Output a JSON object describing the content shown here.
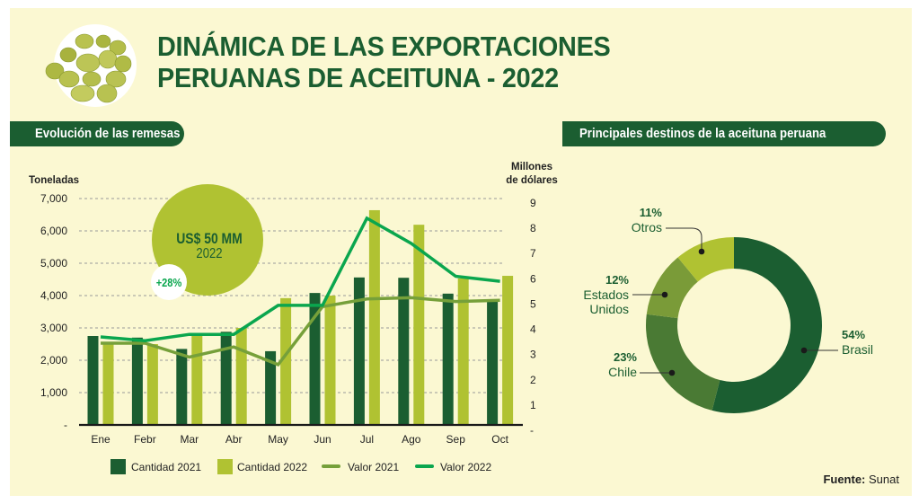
{
  "header": {
    "title_line1": "DINÁMICA DE LAS EXPORTACIONES",
    "title_line2": "PERUANAS DE ACEITUNA - 2022",
    "image": "olives-image"
  },
  "sections": {
    "left_title": "Evolución de las remesas",
    "right_title": "Principales destinos de la aceituna peruana"
  },
  "colors": {
    "dark_green": "#1b5e31",
    "light_green": "#b0c232",
    "valor_2021": "#76a03a",
    "valor_2022": "#0aa64e",
    "background": "#fbf8d2",
    "text_dark": "#222222",
    "grid": "#9a9a9a"
  },
  "callout": {
    "amount": "US$ 50 MM",
    "year": "2022",
    "growth": "+28%"
  },
  "chart_data": [
    {
      "type": "bar",
      "title": "Evolución de las remesas",
      "categories": [
        "Ene",
        "Febr",
        "Mar",
        "Abr",
        "May",
        "Jun",
        "Jul",
        "Ago",
        "Sep",
        "Oct"
      ],
      "ylabel": "Toneladas",
      "ylabel_right": [
        "Millones",
        "de dólares"
      ],
      "ylim": [
        0,
        7000
      ],
      "ylim_right": [
        0,
        9
      ],
      "y_ticks": [
        "-",
        "1,000",
        "2,000",
        "3,000",
        "4,000",
        "5,000",
        "6,000",
        "7,000"
      ],
      "y_ticks_right": [
        "-",
        "1",
        "2",
        "3",
        "4",
        "5",
        "6",
        "7",
        "8",
        "9"
      ],
      "grid": true,
      "legend_position": "bottom",
      "series": [
        {
          "name": "Cantidad 2021",
          "kind": "bar",
          "axis": "left",
          "values": [
            2750,
            2700,
            2350,
            2880,
            2280,
            4080,
            4560,
            4550,
            4060,
            3830
          ]
        },
        {
          "name": "Cantidad 2022",
          "kind": "bar",
          "axis": "left",
          "values": [
            2530,
            2500,
            2830,
            3000,
            3920,
            4000,
            6640,
            6190,
            4530,
            4610
          ]
        },
        {
          "name": "Valor 2021",
          "kind": "line",
          "axis": "right",
          "values": [
            3.45,
            3.45,
            2.9,
            3.3,
            2.6,
            4.9,
            5.2,
            5.25,
            5.1,
            5.15
          ]
        },
        {
          "name": "Valor 2022",
          "kind": "line",
          "axis": "right",
          "values": [
            3.7,
            3.55,
            3.8,
            3.8,
            4.95,
            4.95,
            8.4,
            7.4,
            6.1,
            5.9
          ]
        }
      ]
    },
    {
      "type": "pie",
      "donut": true,
      "title": "Principales destinos de la aceituna peruana",
      "slices": [
        {
          "label": "Brasil",
          "pct_label": "54%",
          "value": 54,
          "color": "#1b5e31"
        },
        {
          "label": "Chile",
          "pct_label": "23%",
          "value": 23,
          "color": "#4a7a34"
        },
        {
          "label": "Estados Unidos",
          "label_lines": [
            "Estados",
            "Unidos"
          ],
          "pct_label": "12%",
          "value": 12,
          "color": "#7a9b38"
        },
        {
          "label": "Otros",
          "pct_label": "11%",
          "value": 11,
          "color": "#b0c232"
        }
      ]
    }
  ],
  "source": {
    "label": "Fuente:",
    "value": "Sunat"
  }
}
